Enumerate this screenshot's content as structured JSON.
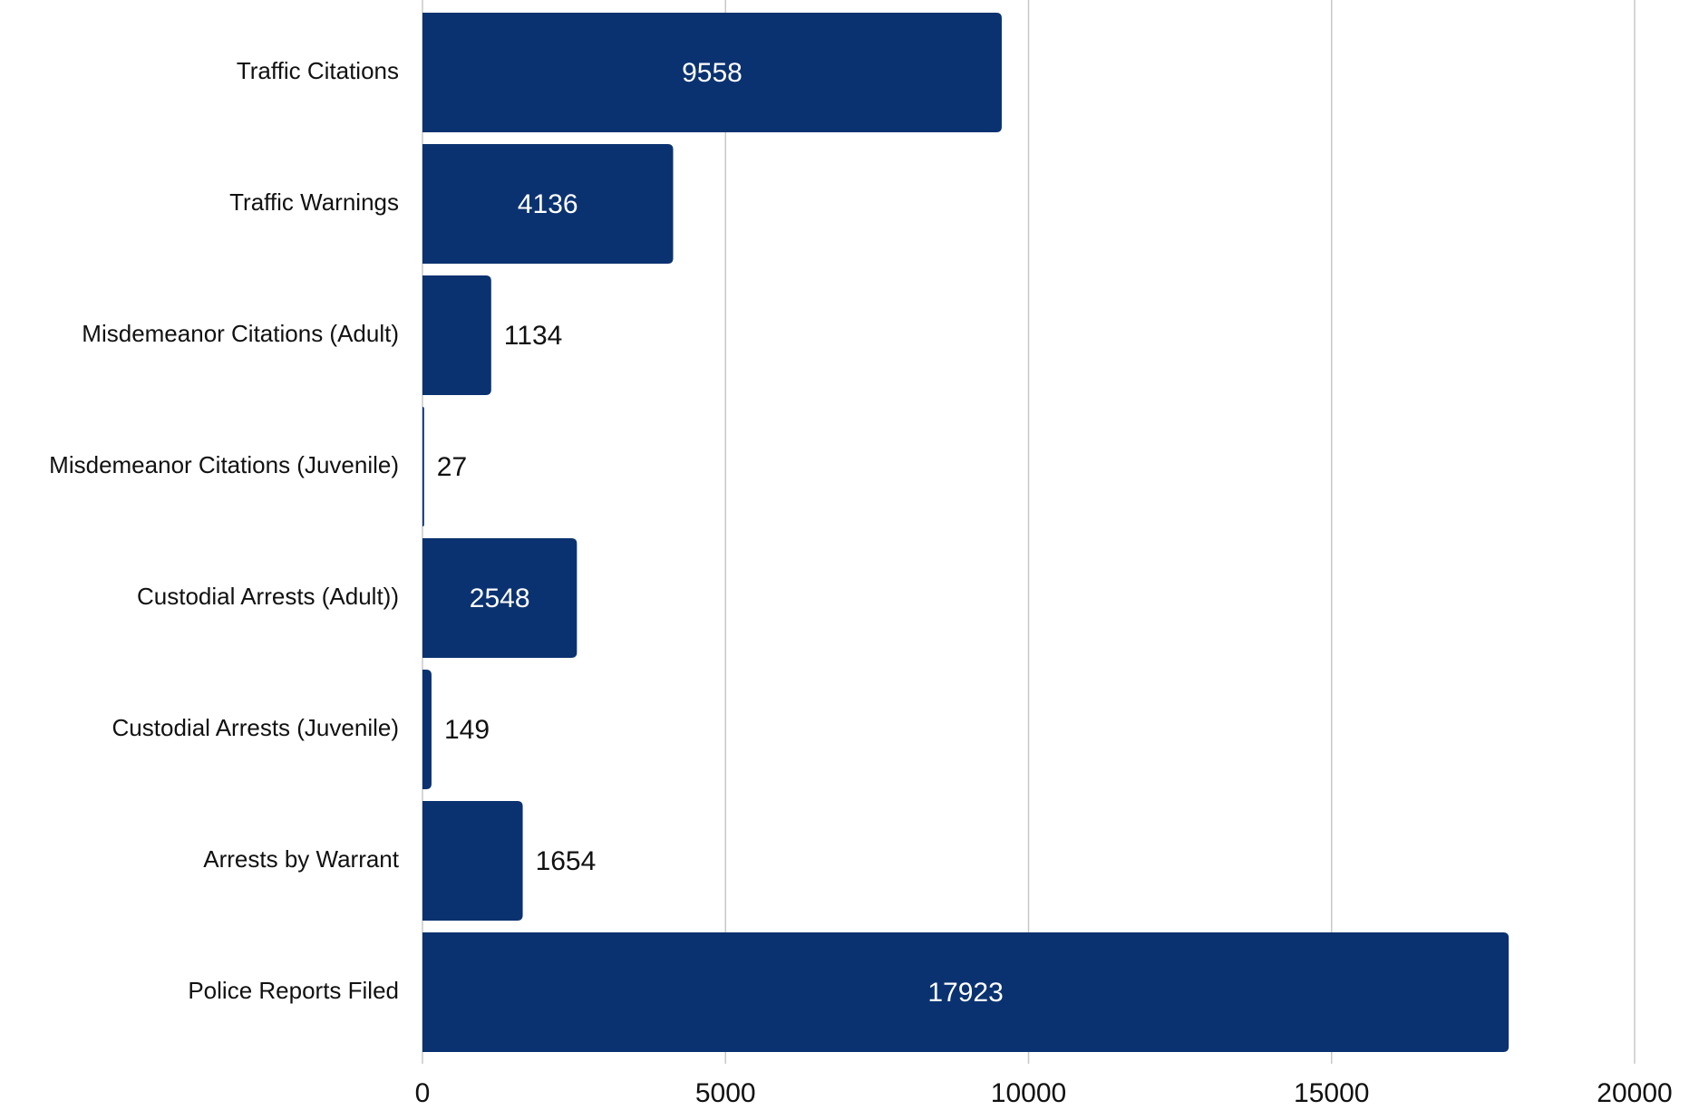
{
  "chart_data": {
    "type": "barh",
    "categories": [
      "Traffic Citations",
      "Traffic Warnings",
      "Misdemeanor Citations (Adult)",
      "Misdemeanor Citations (Juvenile)",
      "Custodial Arrests (Adult))",
      "Custodial Arrests (Juvenile)",
      "Arrests by Warrant",
      "Police Reports Filed"
    ],
    "values": [
      9558,
      4136,
      1134,
      27,
      2548,
      149,
      1654,
      17923
    ],
    "color": "#0b3270",
    "xlim": [
      0,
      20000
    ],
    "xticks": [
      0,
      5000,
      10000,
      15000,
      20000
    ],
    "grid": true
  }
}
